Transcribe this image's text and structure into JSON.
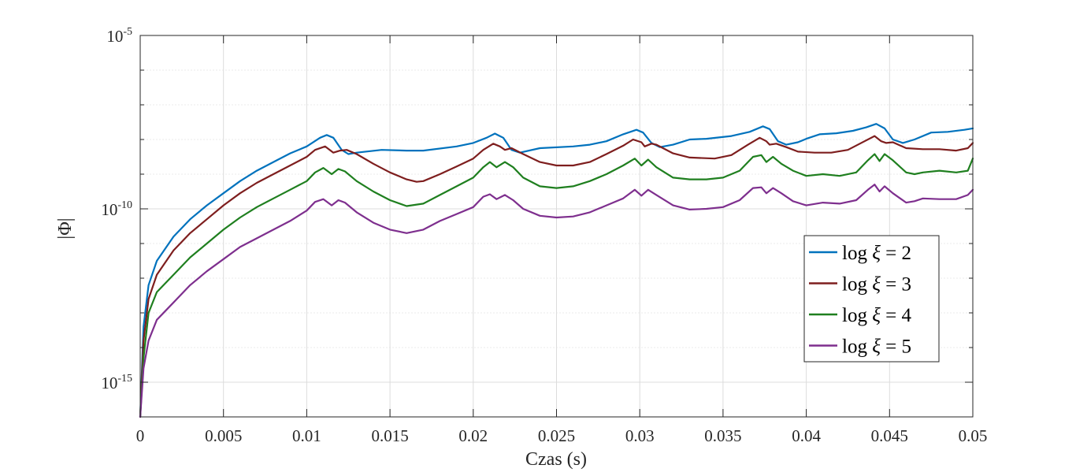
{
  "chart_data": {
    "type": "line",
    "title": "",
    "xlabel": "Czas (s)",
    "ylabel": "|Φ|",
    "xlim": [
      0,
      0.05
    ],
    "ylim_exponent": [
      -16,
      -5
    ],
    "yscale": "log",
    "grid": true,
    "legend_position": "right",
    "x_ticks": [
      {
        "value": 0,
        "label": "0"
      },
      {
        "value": 0.005,
        "label": "0.005"
      },
      {
        "value": 0.01,
        "label": "0.01"
      },
      {
        "value": 0.015,
        "label": "0.015"
      },
      {
        "value": 0.02,
        "label": "0.02"
      },
      {
        "value": 0.025,
        "label": "0.025"
      },
      {
        "value": 0.03,
        "label": "0.03"
      },
      {
        "value": 0.035,
        "label": "0.035"
      },
      {
        "value": 0.04,
        "label": "0.04"
      },
      {
        "value": 0.045,
        "label": "0.045"
      },
      {
        "value": 0.05,
        "label": "0.05"
      }
    ],
    "y_ticks": [
      {
        "exponent": -5,
        "base": "10",
        "exp_label": "-5"
      },
      {
        "exponent": -10,
        "base": "10",
        "exp_label": "-10"
      },
      {
        "exponent": -15,
        "base": "10",
        "exp_label": "-15"
      }
    ],
    "series": [
      {
        "name": "log ξ = 2",
        "legend_base": "log",
        "legend_var": "ξ",
        "legend_rhs": "= 2",
        "color": "#0072BD",
        "points": [
          [
            0,
            -16
          ],
          [
            0.0002,
            -13.4
          ],
          [
            0.0005,
            -12.2
          ],
          [
            0.001,
            -11.5
          ],
          [
            0.002,
            -10.8
          ],
          [
            0.003,
            -10.3
          ],
          [
            0.004,
            -9.9
          ],
          [
            0.005,
            -9.55
          ],
          [
            0.006,
            -9.2
          ],
          [
            0.007,
            -8.9
          ],
          [
            0.008,
            -8.65
          ],
          [
            0.009,
            -8.4
          ],
          [
            0.01,
            -8.2
          ],
          [
            0.0108,
            -7.95
          ],
          [
            0.0112,
            -7.87
          ],
          [
            0.0116,
            -7.95
          ],
          [
            0.0121,
            -8.3
          ],
          [
            0.0125,
            -8.42
          ],
          [
            0.013,
            -8.38
          ],
          [
            0.0145,
            -8.3
          ],
          [
            0.016,
            -8.32
          ],
          [
            0.017,
            -8.32
          ],
          [
            0.019,
            -8.2
          ],
          [
            0.02,
            -8.1
          ],
          [
            0.0208,
            -7.95
          ],
          [
            0.0213,
            -7.83
          ],
          [
            0.0218,
            -7.95
          ],
          [
            0.0223,
            -8.3
          ],
          [
            0.0228,
            -8.38
          ],
          [
            0.024,
            -8.25
          ],
          [
            0.026,
            -8.2
          ],
          [
            0.027,
            -8.15
          ],
          [
            0.028,
            -8.05
          ],
          [
            0.029,
            -7.85
          ],
          [
            0.0298,
            -7.72
          ],
          [
            0.0302,
            -7.8
          ],
          [
            0.0307,
            -8.1
          ],
          [
            0.0312,
            -8.22
          ],
          [
            0.032,
            -8.15
          ],
          [
            0.033,
            -8.0
          ],
          [
            0.034,
            -7.98
          ],
          [
            0.0355,
            -7.9
          ],
          [
            0.0366,
            -7.78
          ],
          [
            0.0374,
            -7.62
          ],
          [
            0.0378,
            -7.7
          ],
          [
            0.0383,
            -8.05
          ],
          [
            0.0388,
            -8.15
          ],
          [
            0.0395,
            -8.08
          ],
          [
            0.04,
            -7.98
          ],
          [
            0.0408,
            -7.85
          ],
          [
            0.0418,
            -7.82
          ],
          [
            0.0428,
            -7.75
          ],
          [
            0.0436,
            -7.65
          ],
          [
            0.0442,
            -7.55
          ],
          [
            0.0447,
            -7.68
          ],
          [
            0.0452,
            -8.0
          ],
          [
            0.0458,
            -8.1
          ],
          [
            0.0465,
            -8.0
          ],
          [
            0.0475,
            -7.8
          ],
          [
            0.0485,
            -7.78
          ],
          [
            0.0495,
            -7.72
          ],
          [
            0.05,
            -7.68
          ]
        ]
      },
      {
        "name": "log ξ = 3",
        "legend_base": "log",
        "legend_var": "ξ",
        "legend_rhs": "= 3",
        "color": "#7E1E1E",
        "points": [
          [
            0,
            -16
          ],
          [
            0.0002,
            -13.8
          ],
          [
            0.0005,
            -12.6
          ],
          [
            0.001,
            -11.9
          ],
          [
            0.002,
            -11.2
          ],
          [
            0.003,
            -10.7
          ],
          [
            0.004,
            -10.3
          ],
          [
            0.005,
            -9.9
          ],
          [
            0.006,
            -9.55
          ],
          [
            0.007,
            -9.25
          ],
          [
            0.008,
            -9.0
          ],
          [
            0.009,
            -8.75
          ],
          [
            0.01,
            -8.5
          ],
          [
            0.0105,
            -8.3
          ],
          [
            0.0111,
            -8.2
          ],
          [
            0.0116,
            -8.38
          ],
          [
            0.012,
            -8.32
          ],
          [
            0.0124,
            -8.3
          ],
          [
            0.013,
            -8.42
          ],
          [
            0.014,
            -8.7
          ],
          [
            0.015,
            -8.95
          ],
          [
            0.016,
            -9.15
          ],
          [
            0.0166,
            -9.22
          ],
          [
            0.017,
            -9.2
          ],
          [
            0.018,
            -9.0
          ],
          [
            0.019,
            -8.78
          ],
          [
            0.02,
            -8.55
          ],
          [
            0.0206,
            -8.3
          ],
          [
            0.0212,
            -8.12
          ],
          [
            0.0216,
            -8.2
          ],
          [
            0.0219,
            -8.3
          ],
          [
            0.0223,
            -8.25
          ],
          [
            0.023,
            -8.42
          ],
          [
            0.024,
            -8.65
          ],
          [
            0.025,
            -8.75
          ],
          [
            0.026,
            -8.75
          ],
          [
            0.027,
            -8.65
          ],
          [
            0.028,
            -8.42
          ],
          [
            0.029,
            -8.18
          ],
          [
            0.0296,
            -8.0
          ],
          [
            0.0301,
            -8.08
          ],
          [
            0.0303,
            -8.2
          ],
          [
            0.0307,
            -8.12
          ],
          [
            0.031,
            -8.15
          ],
          [
            0.032,
            -8.4
          ],
          [
            0.033,
            -8.52
          ],
          [
            0.0345,
            -8.55
          ],
          [
            0.0355,
            -8.45
          ],
          [
            0.0365,
            -8.15
          ],
          [
            0.0372,
            -7.95
          ],
          [
            0.0376,
            -8.05
          ],
          [
            0.0378,
            -8.15
          ],
          [
            0.0382,
            -8.12
          ],
          [
            0.0388,
            -8.22
          ],
          [
            0.0395,
            -8.35
          ],
          [
            0.0405,
            -8.38
          ],
          [
            0.0415,
            -8.38
          ],
          [
            0.0425,
            -8.3
          ],
          [
            0.0435,
            -8.05
          ],
          [
            0.0441,
            -7.9
          ],
          [
            0.0445,
            -8.05
          ],
          [
            0.0448,
            -8.1
          ],
          [
            0.0452,
            -8.08
          ],
          [
            0.046,
            -8.25
          ],
          [
            0.047,
            -8.28
          ],
          [
            0.048,
            -8.28
          ],
          [
            0.049,
            -8.32
          ],
          [
            0.0497,
            -8.25
          ],
          [
            0.05,
            -8.1
          ]
        ]
      },
      {
        "name": "log ξ = 4",
        "legend_base": "log",
        "legend_var": "ξ",
        "legend_rhs": "= 4",
        "color": "#1F7F1F",
        "points": [
          [
            0,
            -16
          ],
          [
            0.0002,
            -14.3
          ],
          [
            0.0005,
            -13.0
          ],
          [
            0.001,
            -12.4
          ],
          [
            0.002,
            -11.9
          ],
          [
            0.003,
            -11.4
          ],
          [
            0.004,
            -11.0
          ],
          [
            0.005,
            -10.6
          ],
          [
            0.006,
            -10.25
          ],
          [
            0.007,
            -9.95
          ],
          [
            0.008,
            -9.7
          ],
          [
            0.009,
            -9.45
          ],
          [
            0.01,
            -9.2
          ],
          [
            0.0105,
            -8.95
          ],
          [
            0.011,
            -8.82
          ],
          [
            0.0115,
            -9.0
          ],
          [
            0.0119,
            -8.85
          ],
          [
            0.0123,
            -8.92
          ],
          [
            0.013,
            -9.2
          ],
          [
            0.014,
            -9.5
          ],
          [
            0.015,
            -9.75
          ],
          [
            0.016,
            -9.92
          ],
          [
            0.017,
            -9.85
          ],
          [
            0.018,
            -9.6
          ],
          [
            0.019,
            -9.35
          ],
          [
            0.02,
            -9.1
          ],
          [
            0.0206,
            -8.8
          ],
          [
            0.021,
            -8.65
          ],
          [
            0.0214,
            -8.8
          ],
          [
            0.0219,
            -8.65
          ],
          [
            0.0224,
            -8.8
          ],
          [
            0.023,
            -9.1
          ],
          [
            0.024,
            -9.35
          ],
          [
            0.025,
            -9.4
          ],
          [
            0.026,
            -9.35
          ],
          [
            0.027,
            -9.2
          ],
          [
            0.028,
            -9.0
          ],
          [
            0.029,
            -8.75
          ],
          [
            0.0297,
            -8.55
          ],
          [
            0.0301,
            -8.75
          ],
          [
            0.0305,
            -8.58
          ],
          [
            0.031,
            -8.8
          ],
          [
            0.032,
            -9.1
          ],
          [
            0.033,
            -9.15
          ],
          [
            0.034,
            -9.15
          ],
          [
            0.035,
            -9.1
          ],
          [
            0.036,
            -8.9
          ],
          [
            0.0368,
            -8.5
          ],
          [
            0.0373,
            -8.45
          ],
          [
            0.0376,
            -8.65
          ],
          [
            0.038,
            -8.5
          ],
          [
            0.0385,
            -8.7
          ],
          [
            0.0392,
            -8.9
          ],
          [
            0.04,
            -9.05
          ],
          [
            0.041,
            -9.0
          ],
          [
            0.042,
            -9.05
          ],
          [
            0.043,
            -8.95
          ],
          [
            0.0437,
            -8.6
          ],
          [
            0.0441,
            -8.42
          ],
          [
            0.0444,
            -8.62
          ],
          [
            0.0447,
            -8.42
          ],
          [
            0.0452,
            -8.6
          ],
          [
            0.046,
            -8.95
          ],
          [
            0.0465,
            -9.0
          ],
          [
            0.047,
            -8.95
          ],
          [
            0.048,
            -8.9
          ],
          [
            0.049,
            -8.95
          ],
          [
            0.0497,
            -8.9
          ],
          [
            0.05,
            -8.55
          ]
        ]
      },
      {
        "name": "log ξ = 5",
        "legend_base": "log",
        "legend_var": "ξ",
        "legend_rhs": "= 5",
        "color": "#7E2F8E",
        "points": [
          [
            0,
            -16
          ],
          [
            0.0002,
            -14.6
          ],
          [
            0.0005,
            -13.8
          ],
          [
            0.001,
            -13.2
          ],
          [
            0.002,
            -12.7
          ],
          [
            0.003,
            -12.2
          ],
          [
            0.004,
            -11.8
          ],
          [
            0.005,
            -11.45
          ],
          [
            0.006,
            -11.1
          ],
          [
            0.007,
            -10.85
          ],
          [
            0.008,
            -10.6
          ],
          [
            0.009,
            -10.35
          ],
          [
            0.01,
            -10.05
          ],
          [
            0.0105,
            -9.8
          ],
          [
            0.011,
            -9.72
          ],
          [
            0.0115,
            -9.9
          ],
          [
            0.0119,
            -9.75
          ],
          [
            0.0123,
            -9.82
          ],
          [
            0.013,
            -10.1
          ],
          [
            0.014,
            -10.4
          ],
          [
            0.015,
            -10.6
          ],
          [
            0.016,
            -10.7
          ],
          [
            0.017,
            -10.6
          ],
          [
            0.018,
            -10.35
          ],
          [
            0.019,
            -10.15
          ],
          [
            0.02,
            -9.95
          ],
          [
            0.0206,
            -9.65
          ],
          [
            0.021,
            -9.58
          ],
          [
            0.0214,
            -9.72
          ],
          [
            0.0219,
            -9.6
          ],
          [
            0.0224,
            -9.75
          ],
          [
            0.023,
            -10.0
          ],
          [
            0.024,
            -10.2
          ],
          [
            0.025,
            -10.25
          ],
          [
            0.026,
            -10.22
          ],
          [
            0.027,
            -10.1
          ],
          [
            0.028,
            -9.9
          ],
          [
            0.029,
            -9.7
          ],
          [
            0.0297,
            -9.45
          ],
          [
            0.0301,
            -9.62
          ],
          [
            0.0305,
            -9.45
          ],
          [
            0.031,
            -9.6
          ],
          [
            0.032,
            -9.9
          ],
          [
            0.033,
            -10.02
          ],
          [
            0.034,
            -10.0
          ],
          [
            0.035,
            -9.95
          ],
          [
            0.036,
            -9.75
          ],
          [
            0.0368,
            -9.4
          ],
          [
            0.0373,
            -9.38
          ],
          [
            0.0376,
            -9.55
          ],
          [
            0.038,
            -9.4
          ],
          [
            0.0385,
            -9.55
          ],
          [
            0.0392,
            -9.78
          ],
          [
            0.04,
            -9.9
          ],
          [
            0.041,
            -9.82
          ],
          [
            0.042,
            -9.85
          ],
          [
            0.043,
            -9.75
          ],
          [
            0.0437,
            -9.45
          ],
          [
            0.0441,
            -9.3
          ],
          [
            0.0444,
            -9.5
          ],
          [
            0.0447,
            -9.35
          ],
          [
            0.0452,
            -9.55
          ],
          [
            0.046,
            -9.82
          ],
          [
            0.0465,
            -9.78
          ],
          [
            0.047,
            -9.7
          ],
          [
            0.048,
            -9.72
          ],
          [
            0.049,
            -9.72
          ],
          [
            0.0497,
            -9.6
          ],
          [
            0.05,
            -9.45
          ]
        ]
      }
    ]
  }
}
